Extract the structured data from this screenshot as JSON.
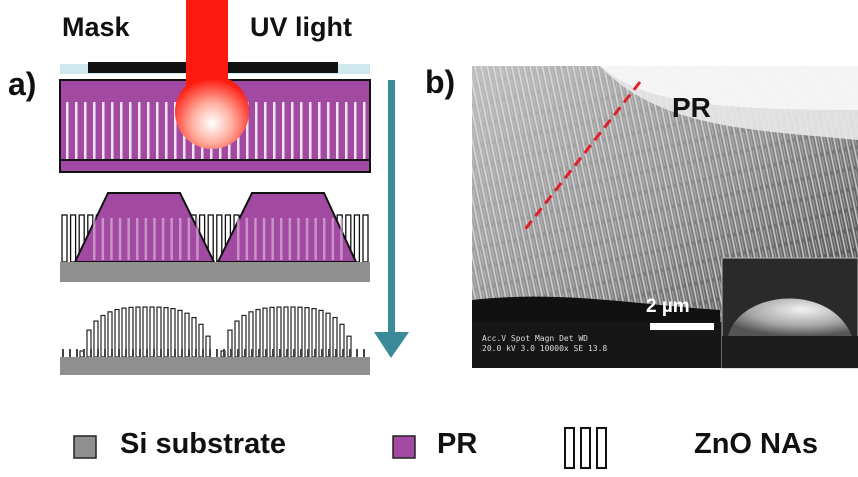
{
  "labels": {
    "mask": "Mask",
    "uv_light": "UV light",
    "panel_a": "a)",
    "panel_b": "b)",
    "sem_pr": "PR",
    "scale_bar": "2 µm",
    "sem_info_line1": "Acc.V   Spot Magn    Det   WD",
    "sem_info_line2": "20.0 kV 3.0   10000x   SE   13.8"
  },
  "legend": {
    "si": "Si substrate",
    "pr": "PR",
    "zno": "ZnO NAs"
  },
  "colors": {
    "pr_purple": "#a24aa2",
    "si_gray": "#8f8f8f",
    "uv_red": "#ff1a10",
    "arrow_teal": "#3a8a9a",
    "mask_black": "#111111",
    "mask_glass": "#cfe8ee",
    "dashed_red": "#e0202a"
  }
}
